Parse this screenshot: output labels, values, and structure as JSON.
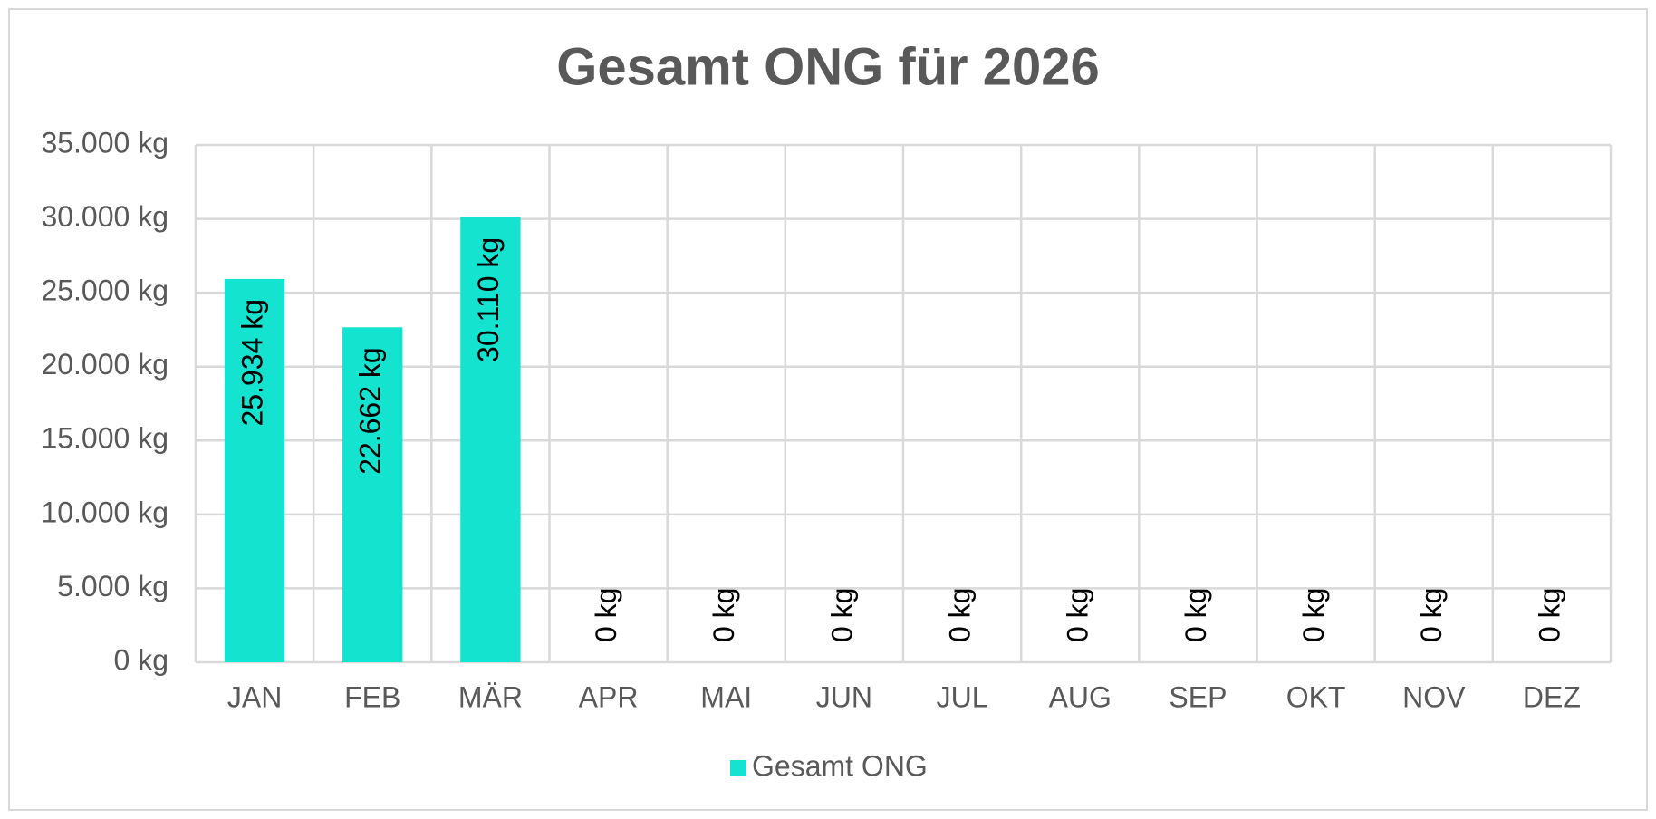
{
  "chart_data": {
    "type": "bar",
    "title": "Gesamt ONG für 2026",
    "categories": [
      "JAN",
      "FEB",
      "MÄR",
      "APR",
      "MAI",
      "JUN",
      "JUL",
      "AUG",
      "SEP",
      "OKT",
      "NOV",
      "DEZ"
    ],
    "series": [
      {
        "name": "Gesamt ONG",
        "color": "#14e3cf",
        "values": [
          25934,
          22662,
          30110,
          0,
          0,
          0,
          0,
          0,
          0,
          0,
          0,
          0
        ],
        "value_labels": [
          "25.934 kg",
          "22.662 kg",
          "30.110 kg",
          "0 kg",
          "0 kg",
          "0 kg",
          "0 kg",
          "0 kg",
          "0 kg",
          "0 kg",
          "0 kg",
          "0 kg"
        ]
      }
    ],
    "ylim": [
      0,
      35000
    ],
    "yticks": [
      {
        "value": 0,
        "label": "0 kg"
      },
      {
        "value": 5000,
        "label": "5.000 kg"
      },
      {
        "value": 10000,
        "label": "10.000 kg"
      },
      {
        "value": 15000,
        "label": "15.000 kg"
      },
      {
        "value": 20000,
        "label": "20.000 kg"
      },
      {
        "value": 25000,
        "label": "25.000 kg"
      },
      {
        "value": 30000,
        "label": "30.000 kg"
      },
      {
        "value": 35000,
        "label": "35.000 kg"
      }
    ],
    "grid": true,
    "legend": "bottom"
  }
}
